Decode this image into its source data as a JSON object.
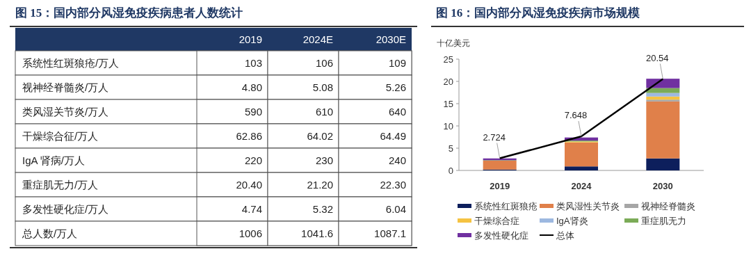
{
  "chart_data": [
    {
      "type": "other",
      "title": "图 15：国内部分风湿免疫疾病患者人数统计",
      "categories": [
        "2019",
        "2024E",
        "2030E"
      ],
      "y_categories": [
        "系统性红斑狼疮/万人",
        "视神经脊髓炎/万人",
        "类风湿关节炎/万人",
        "干燥综合征/万人",
        "IgA 肾病/万人",
        "重症肌无力/万人",
        "多发性硬化症/万人",
        "总人数/万人"
      ],
      "cell_labels": [
        [
          "103",
          "106",
          "109"
        ],
        [
          "4.80",
          "5.08",
          "5.26"
        ],
        [
          "590",
          "610",
          "640"
        ],
        [
          "62.86",
          "64.02",
          "64.49"
        ],
        [
          "220",
          "230",
          "240"
        ],
        [
          "20.40",
          "21.20",
          "22.30"
        ],
        [
          "4.74",
          "5.32",
          "6.04"
        ],
        [
          "1006",
          "1041.6",
          "1087.1"
        ]
      ]
    },
    {
      "type": "bar",
      "title": "图 16：国内部分风湿免疫疾病市场规模",
      "ylabel": "十亿美元",
      "stacked": true,
      "categories": [
        "2019",
        "2024",
        "2030"
      ],
      "ylim": [
        0,
        25
      ],
      "yticks": [
        0,
        5,
        10,
        15,
        20,
        25
      ],
      "grid": false,
      "legend": "bottom",
      "series": [
        {
          "name": "系统性红斑狼疮",
          "color": "#0d1f5c",
          "values": [
            0.2,
            0.9,
            2.7
          ]
        },
        {
          "name": "类风湿性关节炎",
          "color": "#e0804a",
          "values": [
            2.0,
            5.4,
            12.8
          ]
        },
        {
          "name": "视神经脊髓炎",
          "color": "#a6a6a6",
          "values": [
            0.0,
            null,
            0.4
          ]
        },
        {
          "name": "干燥综合症",
          "color": "#f5c342",
          "values": [
            0.0,
            0.2,
            0.7
          ]
        },
        {
          "name": "IgA肾炎",
          "color": "#9db8e0",
          "values": [
            0.0,
            null,
            0.8
          ]
        },
        {
          "name": "重症肌无力",
          "color": "#7bab57",
          "values": [
            0.1,
            0.2,
            1.1
          ]
        },
        {
          "name": "多发性硬化症",
          "color": "#7030a0",
          "values": [
            0.4,
            0.7,
            2.1
          ]
        },
        {
          "name": "总体",
          "type": "line",
          "color": "#000000",
          "values": [
            2.724,
            7.648,
            20.54
          ],
          "value_labels": [
            "2.724",
            "7.648",
            "20.54"
          ]
        }
      ]
    }
  ]
}
